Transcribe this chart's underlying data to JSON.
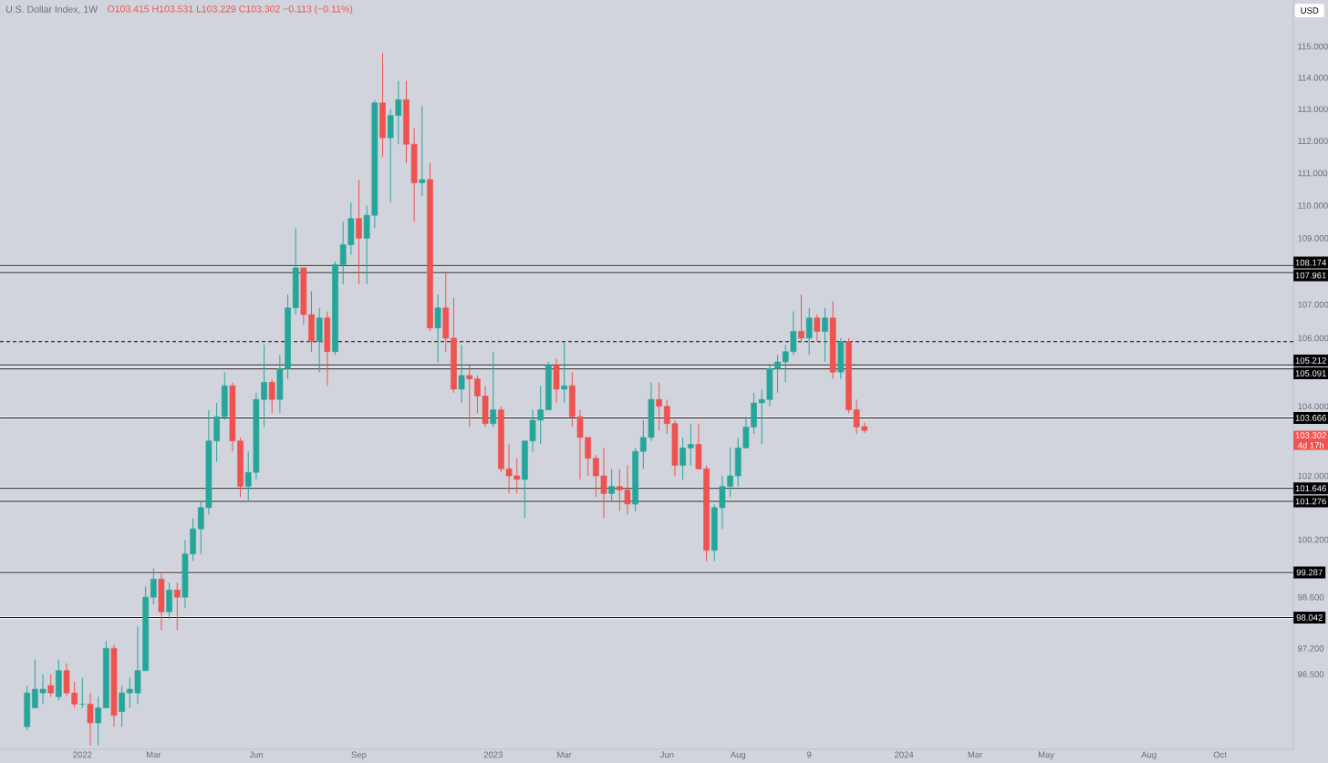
{
  "chart_data": {
    "type": "candlestick",
    "title": "U.S. Dollar Index, 1W",
    "subtitle": "O103.415 H103.531 L103.229 C103.302 −0.113 (−0.11%)",
    "log": "y",
    "x": [
      "2021-11-15",
      "2021-11-22",
      "2021-11-29",
      "2021-12-06",
      "2021-12-13",
      "2021-12-20",
      "2021-12-27",
      "2022-01-03",
      "2022-01-10",
      "2022-01-17",
      "2022-01-24",
      "2022-01-31",
      "2022-02-07",
      "2022-02-14",
      "2022-02-21",
      "2022-02-28",
      "2022-03-07",
      "2022-03-14",
      "2022-03-21",
      "2022-03-28",
      "2022-04-04",
      "2022-04-11",
      "2022-04-18",
      "2022-04-25",
      "2022-05-02",
      "2022-05-09",
      "2022-05-16",
      "2022-05-23",
      "2022-05-30",
      "2022-06-06",
      "2022-06-13",
      "2022-06-20",
      "2022-06-27",
      "2022-07-04",
      "2022-07-11",
      "2022-07-18",
      "2022-07-25",
      "2022-08-01",
      "2022-08-08",
      "2022-08-15",
      "2022-08-22",
      "2022-08-29",
      "2022-09-05",
      "2022-09-12",
      "2022-09-19",
      "2022-09-26",
      "2022-10-03",
      "2022-10-10",
      "2022-10-17",
      "2022-10-24",
      "2022-10-31",
      "2022-11-07",
      "2022-11-14",
      "2022-11-21",
      "2022-11-28",
      "2022-12-05",
      "2022-12-12",
      "2022-12-19",
      "2022-12-26",
      "2023-01-02",
      "2023-01-09",
      "2023-01-16",
      "2023-01-23",
      "2023-01-30",
      "2023-02-06",
      "2023-02-13",
      "2023-02-20",
      "2023-02-27",
      "2023-03-06",
      "2023-03-13",
      "2023-03-20",
      "2023-03-27",
      "2023-04-03",
      "2023-04-10",
      "2023-04-17",
      "2023-04-24",
      "2023-05-01",
      "2023-05-08",
      "2023-05-15",
      "2023-05-22",
      "2023-05-29",
      "2023-06-05",
      "2023-06-12",
      "2023-06-19",
      "2023-06-26",
      "2023-07-03",
      "2023-07-10",
      "2023-07-17",
      "2023-07-24",
      "2023-07-31",
      "2023-08-07",
      "2023-08-14",
      "2023-08-21",
      "2023-08-28",
      "2023-09-04",
      "2023-09-11",
      "2023-09-18",
      "2023-09-25",
      "2023-10-02",
      "2023-10-09",
      "2023-10-16",
      "2023-10-23",
      "2023-10-30",
      "2023-11-06",
      "2023-11-13",
      "2023-11-20",
      "2023-11-27"
    ],
    "ohlc": [
      [
        95.1,
        96.2,
        95.0,
        96.0
      ],
      [
        95.6,
        96.9,
        95.6,
        96.1
      ],
      [
        96.0,
        96.5,
        95.7,
        96.1
      ],
      [
        96.2,
        96.5,
        95.9,
        96.0
      ],
      [
        95.9,
        96.9,
        95.8,
        96.6
      ],
      [
        96.6,
        96.8,
        95.9,
        96.0
      ],
      [
        96.0,
        96.3,
        95.6,
        95.7
      ],
      [
        95.7,
        96.4,
        95.6,
        95.7
      ],
      [
        95.7,
        96.0,
        94.6,
        95.2
      ],
      [
        95.2,
        95.9,
        94.6,
        95.6
      ],
      [
        95.6,
        97.4,
        95.6,
        97.2
      ],
      [
        97.2,
        97.3,
        95.1,
        95.4
      ],
      [
        95.5,
        96.2,
        95.1,
        96.0
      ],
      [
        96.0,
        96.4,
        95.6,
        96.1
      ],
      [
        96.0,
        97.8,
        95.7,
        96.6
      ],
      [
        96.6,
        98.9,
        96.6,
        98.6
      ],
      [
        98.6,
        99.4,
        98.4,
        99.1
      ],
      [
        99.1,
        99.3,
        97.7,
        98.2
      ],
      [
        98.2,
        99.0,
        98.0,
        98.8
      ],
      [
        98.8,
        99.0,
        97.7,
        98.6
      ],
      [
        98.6,
        100.2,
        98.3,
        99.8
      ],
      [
        99.8,
        100.8,
        99.6,
        100.5
      ],
      [
        100.5,
        101.3,
        99.8,
        101.1
      ],
      [
        101.1,
        103.9,
        100.9,
        103.0
      ],
      [
        103.0,
        104.1,
        102.4,
        103.7
      ],
      [
        103.7,
        105.0,
        103.6,
        104.6
      ],
      [
        104.6,
        104.7,
        102.7,
        103.0
      ],
      [
        103.0,
        103.1,
        101.4,
        101.7
      ],
      [
        101.7,
        102.7,
        101.3,
        102.1
      ],
      [
        102.1,
        104.4,
        101.9,
        104.2
      ],
      [
        104.2,
        105.8,
        103.4,
        104.7
      ],
      [
        104.7,
        104.8,
        103.8,
        104.2
      ],
      [
        104.2,
        105.5,
        103.8,
        105.1
      ],
      [
        105.1,
        107.3,
        104.8,
        106.9
      ],
      [
        106.9,
        109.3,
        106.7,
        108.1
      ],
      [
        108.1,
        108.1,
        106.4,
        106.7
      ],
      [
        106.7,
        107.4,
        105.6,
        105.9
      ],
      [
        105.9,
        106.9,
        105.0,
        106.6
      ],
      [
        106.6,
        106.8,
        104.6,
        105.6
      ],
      [
        105.6,
        108.3,
        105.5,
        108.2
      ],
      [
        108.2,
        109.5,
        107.6,
        108.8
      ],
      [
        108.8,
        110.1,
        108.5,
        109.6
      ],
      [
        109.6,
        110.8,
        107.6,
        109.0
      ],
      [
        109.0,
        110.0,
        107.6,
        109.7
      ],
      [
        109.7,
        113.3,
        109.3,
        113.2
      ],
      [
        113.2,
        114.8,
        111.5,
        112.1
      ],
      [
        112.1,
        113.0,
        110.1,
        112.8
      ],
      [
        112.8,
        113.9,
        111.9,
        113.3
      ],
      [
        113.3,
        113.9,
        111.3,
        111.9
      ],
      [
        111.9,
        112.4,
        109.5,
        110.7
      ],
      [
        110.7,
        113.1,
        110.3,
        110.8
      ],
      [
        110.8,
        111.3,
        106.2,
        106.3
      ],
      [
        106.3,
        107.3,
        105.3,
        106.9
      ],
      [
        106.9,
        108.0,
        105.6,
        106.0
      ],
      [
        106.0,
        107.2,
        104.4,
        104.5
      ],
      [
        104.5,
        105.8,
        104.1,
        104.9
      ],
      [
        104.9,
        105.2,
        103.4,
        104.8
      ],
      [
        104.8,
        104.9,
        103.8,
        104.3
      ],
      [
        104.3,
        104.6,
        103.4,
        103.5
      ],
      [
        103.5,
        105.6,
        103.4,
        103.9
      ],
      [
        103.9,
        104.0,
        102.1,
        102.2
      ],
      [
        102.2,
        102.9,
        101.5,
        102.0
      ],
      [
        102.0,
        102.5,
        101.5,
        101.9
      ],
      [
        101.9,
        103.0,
        100.8,
        103.0
      ],
      [
        103.0,
        103.9,
        102.7,
        103.6
      ],
      [
        103.6,
        104.6,
        102.9,
        103.9
      ],
      [
        103.9,
        105.3,
        103.9,
        105.2
      ],
      [
        105.2,
        105.4,
        104.1,
        104.5
      ],
      [
        104.5,
        105.9,
        104.1,
        104.6
      ],
      [
        104.6,
        105.0,
        103.4,
        103.7
      ],
      [
        103.7,
        103.9,
        101.9,
        103.1
      ],
      [
        103.1,
        103.1,
        102.0,
        102.5
      ],
      [
        102.5,
        102.6,
        101.4,
        102.0
      ],
      [
        102.0,
        102.8,
        100.8,
        101.5
      ],
      [
        101.5,
        102.2,
        101.3,
        101.7
      ],
      [
        101.7,
        102.2,
        101.0,
        101.6
      ],
      [
        101.6,
        102.3,
        100.9,
        101.2
      ],
      [
        101.2,
        102.8,
        101.0,
        102.7
      ],
      [
        102.7,
        103.6,
        102.2,
        103.1
      ],
      [
        103.1,
        104.7,
        103.0,
        104.2
      ],
      [
        104.2,
        104.7,
        103.3,
        104.0
      ],
      [
        104.0,
        104.2,
        103.2,
        103.5
      ],
      [
        103.5,
        103.6,
        102.0,
        102.3
      ],
      [
        102.3,
        103.1,
        101.9,
        102.8
      ],
      [
        102.8,
        103.5,
        102.3,
        102.9
      ],
      [
        102.9,
        103.5,
        102.2,
        102.2
      ],
      [
        102.2,
        102.3,
        99.6,
        99.9
      ],
      [
        99.9,
        101.2,
        99.6,
        101.1
      ],
      [
        101.1,
        102.0,
        100.5,
        101.7
      ],
      [
        101.7,
        102.8,
        101.4,
        102.0
      ],
      [
        102.0,
        103.1,
        101.7,
        102.8
      ],
      [
        102.8,
        103.7,
        102.8,
        103.4
      ],
      [
        103.4,
        104.4,
        103.2,
        104.1
      ],
      [
        104.1,
        104.5,
        102.9,
        104.2
      ],
      [
        104.2,
        105.2,
        104.0,
        105.1
      ],
      [
        105.1,
        105.5,
        104.4,
        105.3
      ],
      [
        105.3,
        105.8,
        104.7,
        105.6
      ],
      [
        105.6,
        106.8,
        105.5,
        106.2
      ],
      [
        106.2,
        107.3,
        105.9,
        106.0
      ],
      [
        106.0,
        106.9,
        105.5,
        106.6
      ],
      [
        106.6,
        106.7,
        105.9,
        106.2
      ],
      [
        106.2,
        106.9,
        105.3,
        106.6
      ],
      [
        106.6,
        107.1,
        104.8,
        105.0
      ],
      [
        105.0,
        106.0,
        104.8,
        105.9
      ],
      [
        105.9,
        106.0,
        103.8,
        103.9
      ],
      [
        103.9,
        104.2,
        103.2,
        103.4
      ],
      [
        103.415,
        103.531,
        103.229,
        103.302
      ]
    ],
    "xlim": [
      "2021-10-22",
      "2024-12-11"
    ],
    "xticks": [
      {
        "value": "2022-01-03",
        "label": "2022"
      },
      {
        "value": "2022-03-07",
        "label": "Mar"
      },
      {
        "value": "2022-06-06",
        "label": "Jun"
      },
      {
        "value": "2022-09-05",
        "label": "Sep"
      },
      {
        "value": "2023-01-02",
        "label": "2023"
      },
      {
        "value": "2023-03-06",
        "label": "Mar"
      },
      {
        "value": "2023-06-05",
        "label": "Jun"
      },
      {
        "value": "2023-08-07",
        "label": "Aug"
      },
      {
        "value": "2023-10-09",
        "label": "9"
      },
      {
        "value": "2024-01-01",
        "label": "2024"
      },
      {
        "value": "2024-03-04",
        "label": "Mar"
      },
      {
        "value": "2024-05-06",
        "label": "May"
      },
      {
        "value": "2024-08-05",
        "label": "Aug"
      },
      {
        "value": "2024-10-07",
        "label": "Oct"
      }
    ],
    "ylim": [
      94.5,
      116.5
    ],
    "yticks": [
      {
        "value": 115,
        "label": "115.000"
      },
      {
        "value": 114,
        "label": "114.000"
      },
      {
        "value": 113,
        "label": "113.000"
      },
      {
        "value": 112,
        "label": "112.000"
      },
      {
        "value": 111,
        "label": "111.000"
      },
      {
        "value": 110,
        "label": "110.000"
      },
      {
        "value": 109,
        "label": "109.000"
      },
      {
        "value": 107,
        "label": "107.000"
      },
      {
        "value": 106,
        "label": "106.000"
      },
      {
        "value": 104,
        "label": "104.000"
      },
      {
        "value": 102,
        "label": "102.000"
      },
      {
        "value": 100.2,
        "label": "100.200"
      },
      {
        "value": 98.6,
        "label": "98.600"
      },
      {
        "value": 97.2,
        "label": "97.200"
      },
      {
        "value": 96.5,
        "label": "96.500"
      }
    ],
    "ref_lines": [
      {
        "axis": "y",
        "value": 108.174,
        "label": "108.174",
        "color": "#000000"
      },
      {
        "axis": "y",
        "value": 107.961,
        "label": "107.961",
        "color": "#000000"
      },
      {
        "axis": "y",
        "value": 105.212,
        "label": "105.212",
        "color": "#000000"
      },
      {
        "axis": "y",
        "value": 105.091,
        "label": "105.091",
        "color": "#000000"
      },
      {
        "axis": "y",
        "value": 103.666,
        "label": "103.666",
        "color": "#000000"
      },
      {
        "axis": "y",
        "value": 101.646,
        "label": "101.646",
        "color": "#000000"
      },
      {
        "axis": "y",
        "value": 101.276,
        "label": "101.276",
        "color": "#000000"
      },
      {
        "axis": "y",
        "value": 99.287,
        "label": "99.287",
        "color": "#000000"
      },
      {
        "axis": "y",
        "value": 98.042,
        "label": "98.042",
        "color": "#000000"
      },
      {
        "axis": "y",
        "value": 105.9,
        "label": null,
        "color": "#000000",
        "line_style": "dashed"
      }
    ],
    "annotations": [
      "103.302",
      "4d 17h",
      "USD"
    ]
  }
}
